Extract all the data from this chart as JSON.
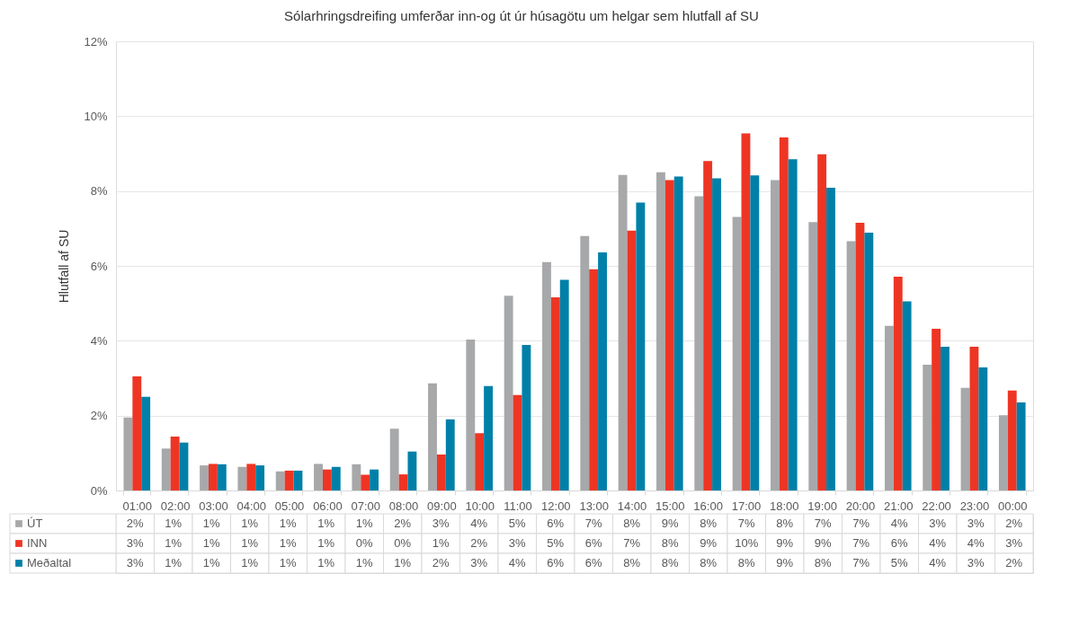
{
  "chart_data": {
    "type": "bar",
    "title": "Sólarhringsdreifing umferðar inn-og út úr húsagötu um helgar sem hlutfall af SU",
    "ylabel": "Hlutfall af SU",
    "categories": [
      "01:00",
      "02:00",
      "03:00",
      "04:00",
      "05:00",
      "06:00",
      "07:00",
      "08:00",
      "09:00",
      "10:00",
      "11:00",
      "12:00",
      "13:00",
      "14:00",
      "15:00",
      "16:00",
      "17:00",
      "18:00",
      "19:00",
      "20:00",
      "21:00",
      "22:00",
      "23:00",
      "00:00"
    ],
    "series": [
      {
        "name": "ÚT",
        "color": "#a7a8aa",
        "values": [
          1.95,
          1.12,
          0.67,
          0.63,
          0.51,
          0.71,
          0.7,
          1.65,
          2.86,
          4.03,
          5.2,
          6.1,
          6.8,
          8.43,
          8.5,
          7.86,
          7.31,
          8.29,
          7.17,
          6.66,
          4.4,
          3.36,
          2.74,
          2.01
        ],
        "value_labels": [
          "2%",
          "1%",
          "1%",
          "1%",
          "1%",
          "1%",
          "1%",
          "2%",
          "3%",
          "4%",
          "5%",
          "6%",
          "7%",
          "8%",
          "9%",
          "8%",
          "7%",
          "8%",
          "7%",
          "7%",
          "4%",
          "3%",
          "3%",
          "2%"
        ]
      },
      {
        "name": "INN",
        "color": "#ee3524",
        "values": [
          3.05,
          1.44,
          0.71,
          0.71,
          0.53,
          0.56,
          0.42,
          0.43,
          0.96,
          1.53,
          2.55,
          5.16,
          5.91,
          6.94,
          8.29,
          8.8,
          9.54,
          9.43,
          8.98,
          7.15,
          5.71,
          4.32,
          3.84,
          2.67
        ],
        "value_labels": [
          "3%",
          "1%",
          "1%",
          "1%",
          "1%",
          "1%",
          "0%",
          "0%",
          "1%",
          "2%",
          "3%",
          "5%",
          "6%",
          "7%",
          "8%",
          "9%",
          "10%",
          "9%",
          "9%",
          "7%",
          "6%",
          "4%",
          "4%",
          "3%"
        ]
      },
      {
        "name": "Meðaltal",
        "color": "#0080a8",
        "values": [
          2.5,
          1.28,
          0.7,
          0.67,
          0.53,
          0.63,
          0.56,
          1.04,
          1.9,
          2.79,
          3.89,
          5.63,
          6.36,
          7.69,
          8.39,
          8.34,
          8.42,
          8.85,
          8.09,
          6.89,
          5.05,
          3.84,
          3.29,
          2.35
        ],
        "value_labels": [
          "3%",
          "1%",
          "1%",
          "1%",
          "1%",
          "1%",
          "1%",
          "1%",
          "2%",
          "3%",
          "4%",
          "6%",
          "6%",
          "8%",
          "8%",
          "8%",
          "8%",
          "9%",
          "8%",
          "7%",
          "5%",
          "4%",
          "3%",
          "2%"
        ]
      }
    ],
    "ylim": [
      0,
      12
    ],
    "yticks": [
      {
        "value": 0,
        "label": "0%"
      },
      {
        "value": 2,
        "label": "2%"
      },
      {
        "value": 4,
        "label": "4%"
      },
      {
        "value": 6,
        "label": "6%"
      },
      {
        "value": 8,
        "label": "8%"
      },
      {
        "value": 10,
        "label": "10%"
      },
      {
        "value": 12,
        "label": "12%"
      }
    ],
    "grid": "y",
    "legend": "bottom"
  }
}
